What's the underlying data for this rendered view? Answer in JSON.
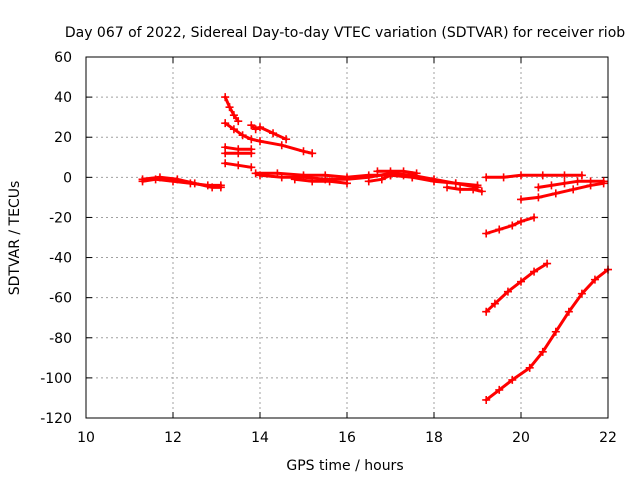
{
  "chart_data": {
    "type": "scatter",
    "title": "Day 067 of 2022, Sidereal Day-to-day VTEC variation (SDTVAR) for receiver riob",
    "xlabel": "GPS time / hours",
    "ylabel": "SDTVAR / TECUs",
    "xlim": [
      10,
      22
    ],
    "ylim": [
      -120,
      60
    ],
    "xticks": [
      10,
      12,
      14,
      16,
      18,
      20,
      22
    ],
    "yticks": [
      -120,
      -100,
      -80,
      -60,
      -40,
      -20,
      0,
      20,
      40,
      60
    ],
    "grid": true,
    "marker": "plus",
    "color": "#ff0000",
    "series": [
      {
        "x": [
          11.3,
          11.6,
          12.0,
          12.4,
          12.8,
          13.1
        ],
        "y": [
          -2,
          -1,
          -2,
          -3,
          -4,
          -4
        ]
      },
      {
        "x": [
          11.3,
          11.7,
          12.1,
          12.5,
          12.9,
          13.1
        ],
        "y": [
          -1,
          0,
          -1,
          -3,
          -5,
          -5
        ]
      },
      {
        "x": [
          13.2,
          13.3,
          13.4,
          13.5
        ],
        "y": [
          40,
          35,
          31,
          28
        ]
      },
      {
        "x": [
          13.2,
          13.4,
          13.6,
          13.8,
          14.0,
          14.5,
          15.0,
          15.2
        ],
        "y": [
          27,
          24,
          21,
          19,
          18,
          16,
          13,
          12
        ]
      },
      {
        "x": [
          13.8,
          13.9,
          14.0,
          14.3,
          14.6
        ],
        "y": [
          26,
          24,
          25,
          22,
          19
        ]
      },
      {
        "x": [
          13.2,
          13.5,
          13.8
        ],
        "y": [
          15,
          14,
          14
        ]
      },
      {
        "x": [
          13.2,
          13.5,
          13.8
        ],
        "y": [
          12,
          12,
          12
        ]
      },
      {
        "x": [
          13.2,
          13.5,
          13.8
        ],
        "y": [
          7,
          6,
          5
        ]
      },
      {
        "x": [
          13.9,
          14.4,
          15.0,
          15.5,
          16.0,
          16.5,
          17.0,
          17.5,
          18.0,
          18.5,
          19.0
        ],
        "y": [
          2,
          2,
          1,
          1,
          0,
          1,
          1,
          0,
          -2,
          -3,
          -4
        ]
      },
      {
        "x": [
          14.0,
          14.5,
          15.0,
          15.5,
          16.0,
          16.5,
          17.0,
          17.5,
          18.0,
          18.5,
          19.0
        ],
        "y": [
          1,
          0,
          0,
          -1,
          -1,
          0,
          2,
          1,
          -1,
          -3,
          -5
        ]
      },
      {
        "x": [
          14.8,
          15.2,
          15.6,
          16.0
        ],
        "y": [
          -1,
          -2,
          -2,
          -3
        ]
      },
      {
        "x": [
          16.5,
          16.8,
          17.0,
          17.3,
          17.5
        ],
        "y": [
          -2,
          -1,
          1,
          1,
          0
        ]
      },
      {
        "x": [
          16.7,
          17.0,
          17.3,
          17.6
        ],
        "y": [
          3,
          3,
          3,
          2
        ]
      },
      {
        "x": [
          18.3,
          18.6,
          18.9,
          19.1
        ],
        "y": [
          -5,
          -6,
          -6,
          -7
        ]
      },
      {
        "x": [
          19.2,
          19.6,
          20.0,
          20.5,
          21.0,
          21.4
        ],
        "y": [
          0,
          0,
          1,
          1,
          1,
          1
        ]
      },
      {
        "x": [
          20.0,
          20.4,
          20.8,
          21.2,
          21.6,
          21.9
        ],
        "y": [
          -11,
          -10,
          -8,
          -6,
          -4,
          -3
        ]
      },
      {
        "x": [
          20.4,
          20.7,
          21.0,
          21.3,
          21.6,
          21.9
        ],
        "y": [
          -5,
          -4,
          -3,
          -2,
          -2,
          -2
        ]
      },
      {
        "x": [
          19.2,
          19.5,
          19.8,
          20.0,
          20.3
        ],
        "y": [
          -28,
          -26,
          -24,
          -22,
          -20
        ]
      },
      {
        "x": [
          19.2,
          19.4,
          19.7,
          20.0,
          20.3,
          20.6
        ],
        "y": [
          -67,
          -63,
          -57,
          -52,
          -47,
          -43
        ]
      },
      {
        "x": [
          19.2,
          19.5,
          19.8,
          20.2,
          20.5,
          20.8,
          21.1,
          21.4,
          21.7,
          22.0
        ],
        "y": [
          -111,
          -106,
          -101,
          -95,
          -87,
          -77,
          -67,
          -58,
          -51,
          -46
        ]
      }
    ]
  }
}
